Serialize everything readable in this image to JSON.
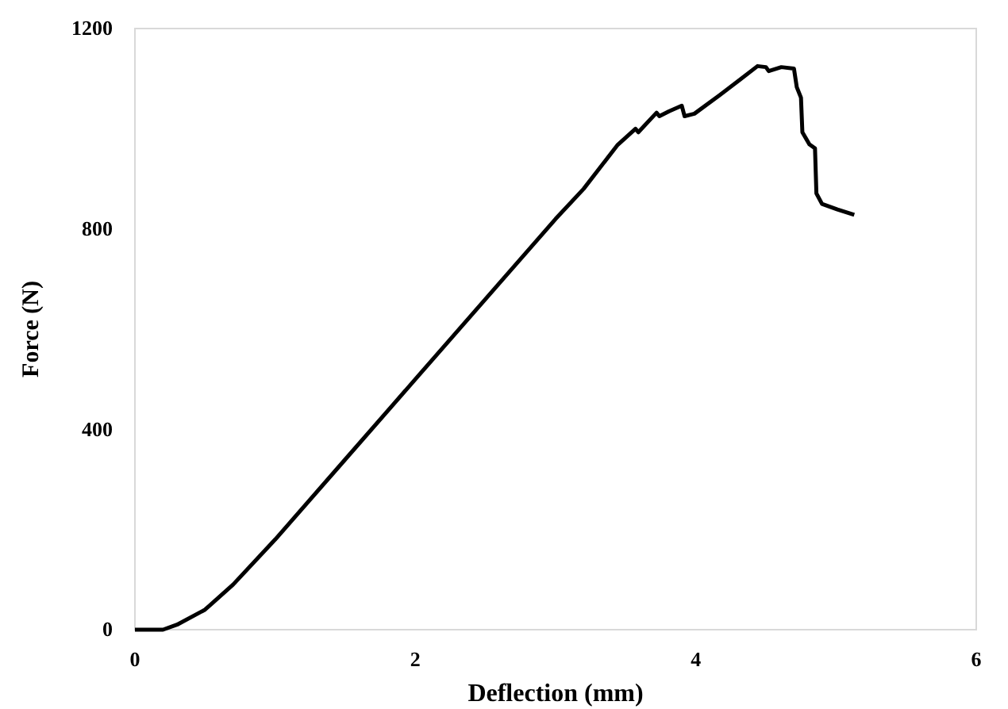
{
  "chart_data": {
    "type": "line",
    "xlabel": "Deflection (mm)",
    "ylabel": "Force (N)",
    "xlim": [
      0,
      6
    ],
    "ylim": [
      0,
      1200
    ],
    "xticks": [
      0,
      2,
      4,
      6
    ],
    "yticks": [
      0,
      400,
      800,
      1200
    ],
    "grid": false,
    "marker": "none",
    "line_style": "solid",
    "x": [
      0,
      0.2,
      0.3,
      0.5,
      0.7,
      1.0,
      1.5,
      2.0,
      2.5,
      3.0,
      3.2,
      3.44,
      3.57,
      3.59,
      3.72,
      3.74,
      3.81,
      3.9,
      3.92,
      3.99,
      4.17,
      4.32,
      4.44,
      4.5,
      4.52,
      4.61,
      4.7,
      4.72,
      4.75,
      4.76,
      4.81,
      4.85,
      4.86,
      4.9,
      5.01,
      5.13
    ],
    "series": [
      {
        "color": "#000000",
        "values": [
          0,
          0,
          10,
          40,
          90,
          180,
          340,
          500,
          660,
          820,
          880,
          967,
          1000,
          993,
          1032,
          1025,
          1035,
          1046,
          1025,
          1030,
          1067,
          1099,
          1125,
          1123,
          1115,
          1123,
          1120,
          1083,
          1062,
          993,
          969,
          961,
          871,
          850,
          839,
          828
        ]
      }
    ]
  }
}
